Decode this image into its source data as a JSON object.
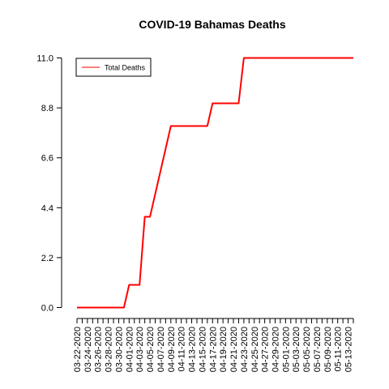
{
  "chart_data": {
    "type": "line",
    "title": "COVID-19 Bahamas Deaths",
    "xlabel": "",
    "ylabel": "",
    "ylim": [
      0,
      11
    ],
    "yticks": [
      0.0,
      2.2,
      4.4,
      6.6,
      8.8,
      11.0
    ],
    "ytick_labels": [
      "0.0",
      "2.2",
      "4.4",
      "6.6",
      "8.8",
      "11.0"
    ],
    "xtick_labels": [
      "03-22-2020",
      "03-24-2020",
      "03-26-2020",
      "03-28-2020",
      "03-30-2020",
      "04-01-2020",
      "04-03-2020",
      "04-05-2020",
      "04-07-2020",
      "04-09-2020",
      "04-11-2020",
      "04-13-2020",
      "04-15-2020",
      "04-17-2020",
      "04-19-2020",
      "04-21-2020",
      "04-23-2020",
      "04-25-2020",
      "04-27-2020",
      "04-29-2020",
      "05-01-2020",
      "05-03-2020",
      "05-05-2020",
      "05-07-2020",
      "05-09-2020",
      "05-11-2020",
      "05-13-2020"
    ],
    "x": [
      "03-22-2020",
      "03-23-2020",
      "03-24-2020",
      "03-25-2020",
      "03-26-2020",
      "03-27-2020",
      "03-28-2020",
      "03-29-2020",
      "03-30-2020",
      "03-31-2020",
      "04-01-2020",
      "04-02-2020",
      "04-03-2020",
      "04-04-2020",
      "04-05-2020",
      "04-06-2020",
      "04-07-2020",
      "04-08-2020",
      "04-09-2020",
      "04-10-2020",
      "04-11-2020",
      "04-12-2020",
      "04-13-2020",
      "04-14-2020",
      "04-15-2020",
      "04-16-2020",
      "04-17-2020",
      "04-18-2020",
      "04-19-2020",
      "04-20-2020",
      "04-21-2020",
      "04-22-2020",
      "04-23-2020",
      "04-24-2020",
      "04-25-2020",
      "04-26-2020",
      "04-27-2020",
      "04-28-2020",
      "04-29-2020",
      "04-30-2020",
      "05-01-2020",
      "05-02-2020",
      "05-03-2020",
      "05-04-2020",
      "05-05-2020",
      "05-06-2020",
      "05-07-2020",
      "05-08-2020",
      "05-09-2020",
      "05-10-2020",
      "05-11-2020",
      "05-12-2020",
      "05-13-2020",
      "05-14-2020"
    ],
    "series": [
      {
        "name": "Total Deaths",
        "color": "#ff0000",
        "values": [
          0,
          0,
          0,
          0,
          0,
          0,
          0,
          0,
          0,
          0,
          1,
          1,
          1,
          4,
          4,
          5,
          6,
          7,
          8,
          8,
          8,
          8,
          8,
          8,
          8,
          8,
          9,
          9,
          9,
          9,
          9,
          9,
          11,
          11,
          11,
          11,
          11,
          11,
          11,
          11,
          11,
          11,
          11,
          11,
          11,
          11,
          11,
          11,
          11,
          11,
          11,
          11,
          11,
          11
        ]
      }
    ],
    "grid": false,
    "legend_position": "top-left"
  }
}
